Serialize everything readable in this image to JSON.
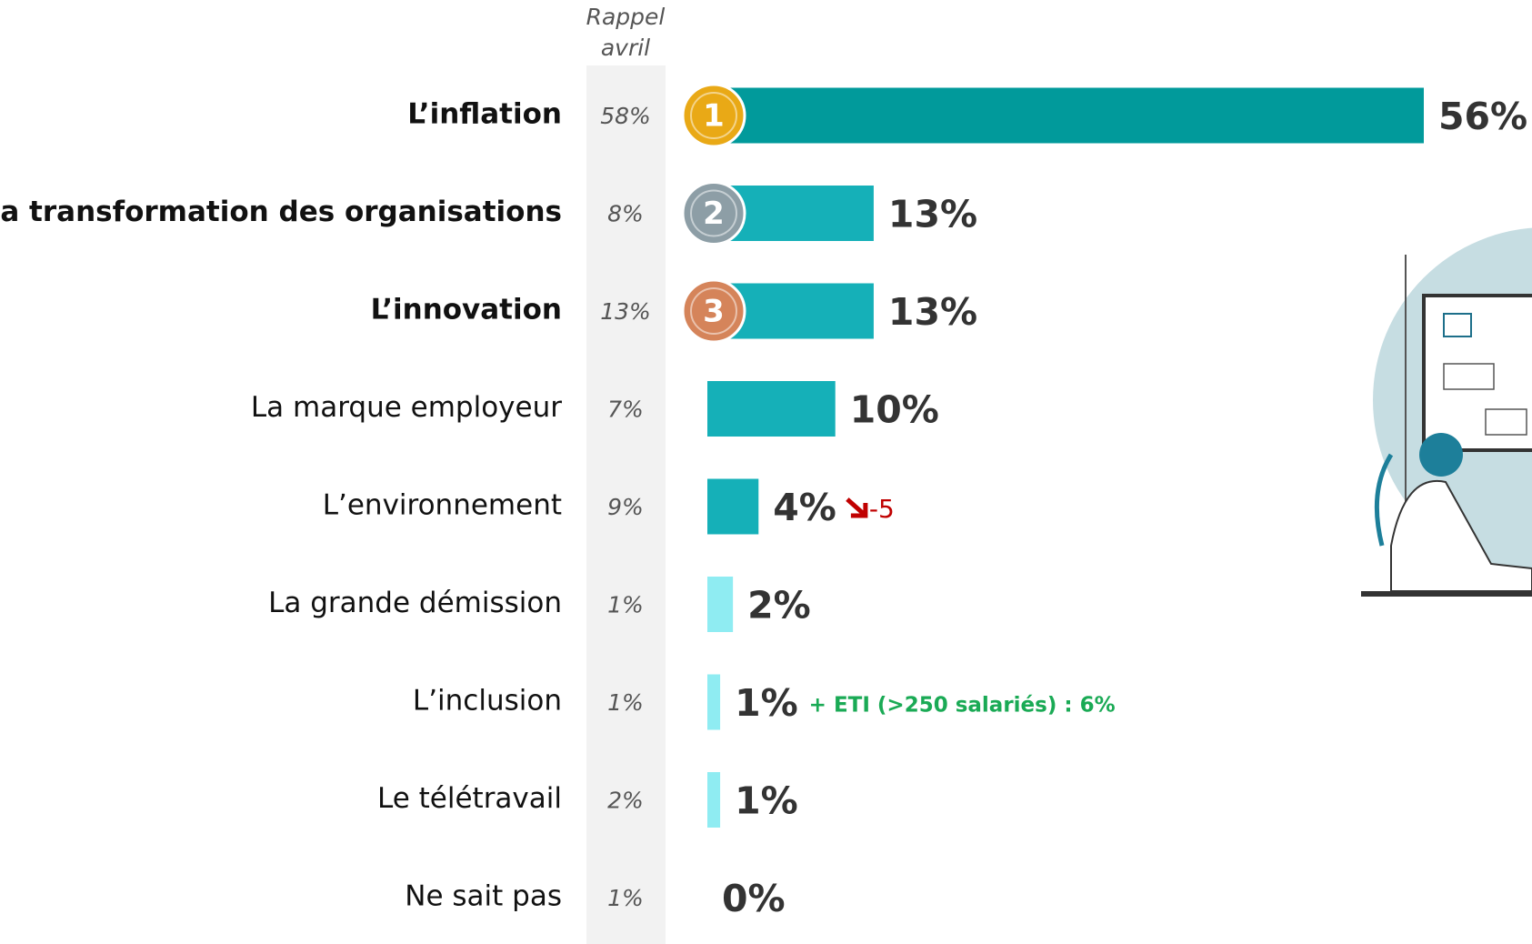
{
  "chart_data": {
    "type": "bar",
    "recall_title": [
      "Rappel",
      "avril"
    ],
    "categories": [
      "L’inflation",
      "La transformation des organisations",
      "L’innovation",
      "La marque employeur",
      "L’environnement",
      "La grande démission",
      "L’inclusion",
      "Le télétravail",
      "Ne sait pas"
    ],
    "recall_labels": [
      "58%",
      "8%",
      "13%",
      "7%",
      "9%",
      "1%",
      "1%",
      "2%",
      "1%"
    ],
    "values": [
      56,
      13,
      13,
      10,
      4,
      2,
      1,
      1,
      0
    ],
    "value_labels": [
      "56%",
      "13%",
      "13%",
      "10%",
      "4%",
      "2%",
      "1%",
      "1%",
      "0%"
    ],
    "colors": [
      "#019a9b",
      "#15b0b8",
      "#15b0b8",
      "#15b0b8",
      "#15b0b8",
      "#8fecf2",
      "#8fecf2",
      "#8fecf2",
      "#8fecf2"
    ],
    "medals": [
      "1",
      "2",
      "3",
      null,
      null,
      null,
      null,
      null,
      null
    ],
    "notes": [
      null,
      null,
      null,
      null,
      {
        "text": "-5",
        "color": "#c00000"
      },
      null,
      {
        "text": "+ ETI (>250 salariés) : 6%",
        "color": "#1aaa55"
      },
      null,
      null
    ]
  }
}
